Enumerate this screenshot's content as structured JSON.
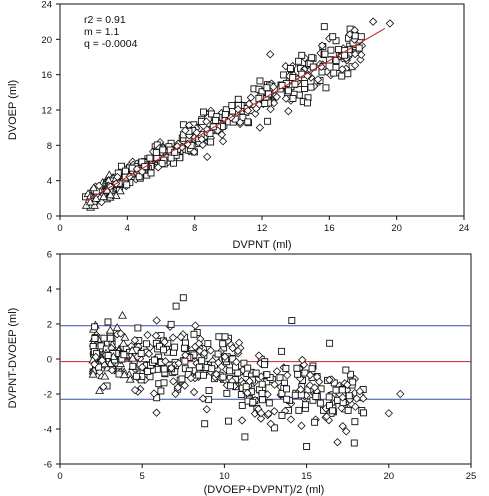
{
  "chart_data": [
    {
      "type": "scatter",
      "xlabel": "DVPNT (ml)",
      "ylabel": "DVOEP (ml)",
      "xlim": [
        0,
        24
      ],
      "ylim": [
        0,
        24
      ],
      "x_ticks": [
        "0",
        "4",
        "8",
        "12",
        "16",
        "20",
        "24"
      ],
      "y_ticks": [
        "0",
        "4",
        "8",
        "12",
        "16",
        "20",
        "24"
      ],
      "annotations": [
        "r2 = 0.91",
        "m = 1.1",
        "q = -0.0004"
      ],
      "regression": {
        "slope": 1.1,
        "intercept": -0.0004,
        "x_range": [
          1.5,
          19.3
        ],
        "color": "#cc2222"
      },
      "marker_shapes": [
        "triangle",
        "diamond",
        "square"
      ],
      "groups": [
        {
          "marker": "triangle",
          "x_range": [
            1.5,
            3.5
          ]
        },
        {
          "marker": "diamond",
          "x_range": [
            2.5,
            19.8
          ]
        },
        {
          "marker": "square",
          "x_range": [
            3.5,
            18.0
          ]
        }
      ],
      "sample_points": [
        {
          "x": 1.8,
          "y": 1.6,
          "marker": "triangle"
        },
        {
          "x": 2.0,
          "y": 3.2,
          "marker": "triangle"
        },
        {
          "x": 3.0,
          "y": 2.4,
          "marker": "triangle"
        },
        {
          "x": 18.6,
          "y": 22.0,
          "marker": "diamond"
        },
        {
          "x": 19.6,
          "y": 21.8,
          "marker": "diamond"
        },
        {
          "x": 16.2,
          "y": 20.3,
          "marker": "square"
        },
        {
          "x": 17.9,
          "y": 20.3,
          "marker": "square"
        },
        {
          "x": 14.7,
          "y": 12.8,
          "marker": "square"
        },
        {
          "x": 17.1,
          "y": 16.1,
          "marker": "square"
        },
        {
          "x": 16.9,
          "y": 18.2,
          "marker": "square"
        }
      ],
      "grid": false
    },
    {
      "type": "scatter",
      "xlabel": "(DVOEP+DVPNT)/2 (ml)",
      "ylabel": "DVPNT-DVOEP (ml)",
      "xlim": [
        0,
        25
      ],
      "ylim": [
        -6,
        6
      ],
      "x_ticks": [
        "0",
        "5",
        "10",
        "15",
        "20",
        "25"
      ],
      "y_ticks": [
        "-6",
        "-4",
        "-2",
        "0",
        "2",
        "4",
        "6"
      ],
      "reference_lines": [
        {
          "y": 1.9,
          "color": "#3a4fa0"
        },
        {
          "y": -0.15,
          "color": "#cc2222"
        },
        {
          "y": -2.3,
          "color": "#3a4fa0"
        }
      ],
      "marker_shapes": [
        "triangle",
        "diamond",
        "square"
      ],
      "groups": [
        {
          "marker": "triangle",
          "x_range": [
            1.8,
            4.5
          ]
        },
        {
          "marker": "diamond",
          "x_range": [
            2.5,
            20.8
          ]
        },
        {
          "marker": "square",
          "x_range": [
            3.5,
            18.0
          ]
        }
      ],
      "sample_points": [
        {
          "x": 3.8,
          "y": 2.5,
          "marker": "triangle"
        },
        {
          "x": 7.5,
          "y": 3.5,
          "marker": "square"
        },
        {
          "x": 14.1,
          "y": 2.2,
          "marker": "square"
        },
        {
          "x": 16.4,
          "y": 0.9,
          "marker": "square"
        },
        {
          "x": 20.7,
          "y": -2.0,
          "marker": "diamond"
        },
        {
          "x": 20.0,
          "y": -3.1,
          "marker": "diamond"
        },
        {
          "x": 17.9,
          "y": -4.8,
          "marker": "square"
        },
        {
          "x": 15.0,
          "y": -5.0,
          "marker": "square"
        },
        {
          "x": 8.8,
          "y": -3.7,
          "marker": "square"
        }
      ],
      "grid": false
    }
  ],
  "colors": {
    "axis": "#111111",
    "marker_stroke": "#111111",
    "regression": "#cc2222",
    "limit_lines": "#3a4fa0",
    "mean_line": "#cc2222"
  }
}
